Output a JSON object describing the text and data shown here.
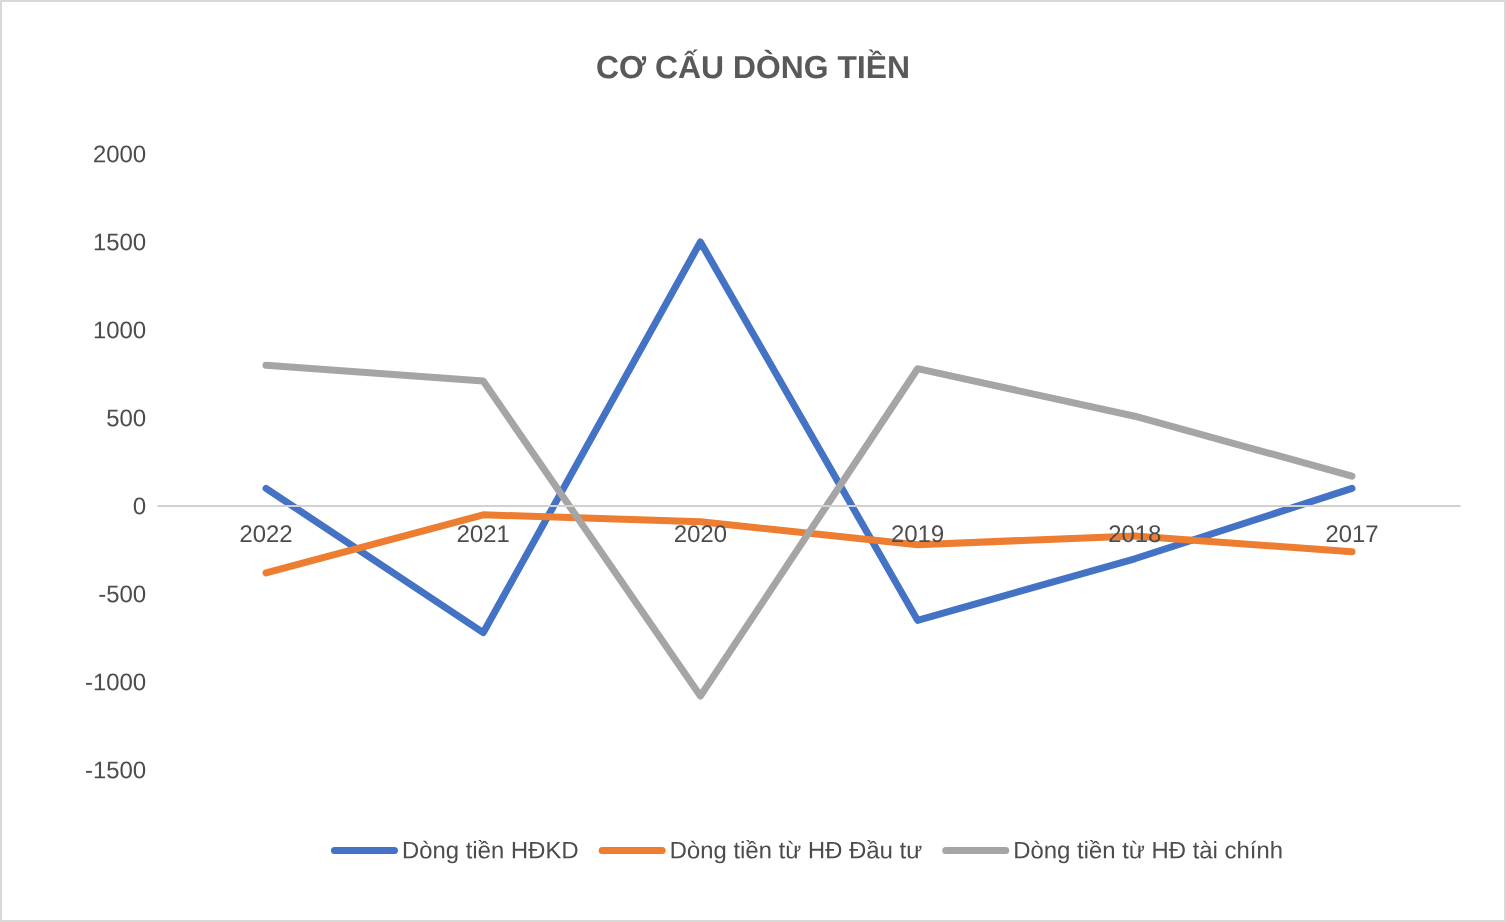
{
  "chart_data": {
    "type": "line",
    "title": "CƠ CẤU DÒNG TIỀN",
    "categories": [
      "2022",
      "2021",
      "2020",
      "2019",
      "2018",
      "2017"
    ],
    "series": [
      {
        "name": "Dòng tiền HĐKD",
        "color": "#4472c4",
        "values": [
          100,
          -720,
          1500,
          -650,
          -300,
          100
        ]
      },
      {
        "name": "Dòng tiền từ HĐ Đầu tư",
        "color": "#ed7d31",
        "values": [
          -380,
          -50,
          -90,
          -220,
          -170,
          -260
        ]
      },
      {
        "name": "Dòng tiền từ HĐ tài chính",
        "color": "#a5a5a5",
        "values": [
          800,
          710,
          -1080,
          780,
          510,
          170
        ]
      }
    ],
    "ylim": [
      -1500,
      2000
    ],
    "yticks": [
      -1500,
      -1000,
      -500,
      0,
      500,
      1000,
      1500,
      2000
    ],
    "grid": false,
    "legend": "bottom",
    "marker": "none",
    "line_style": "solid"
  }
}
